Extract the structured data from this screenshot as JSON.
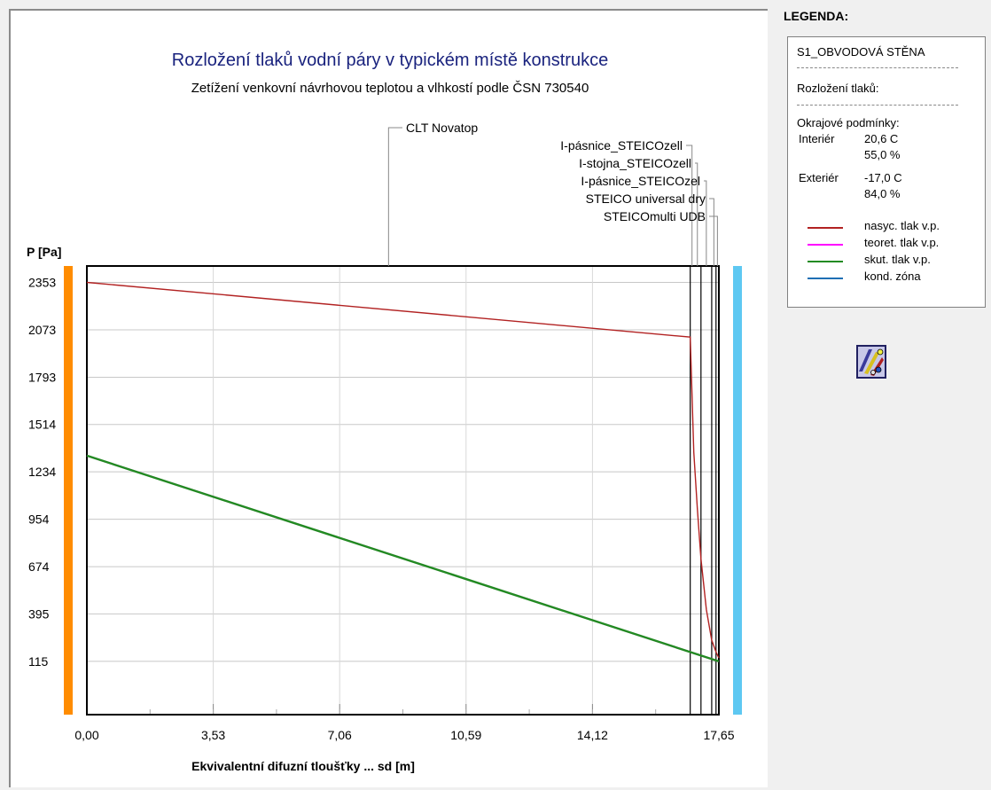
{
  "chart_data": {
    "type": "line",
    "title": "Rozložení tlaků vodní páry v typickém místě konstrukce",
    "subtitle": "Zetížení venkovní návrhovou teplotou a vlhkostí podle ČSN 730540",
    "ylabel": "P [Pa]",
    "xlabel": "Ekvivalentní difuzní tloušťky ... sd [m]",
    "xlim": [
      0,
      17.65
    ],
    "ylim": [
      -200,
      2450
    ],
    "yticks": [
      2353,
      2073,
      1793,
      1514,
      1234,
      954,
      674,
      395,
      115
    ],
    "ytick_labels": [
      "2353",
      "2073",
      "1793",
      "1514",
      "1234",
      "954",
      "674",
      "395",
      "115"
    ],
    "xticks": [
      0,
      3.53,
      7.06,
      10.59,
      14.12,
      17.65
    ],
    "xtick_labels": [
      "0,00",
      "3,53",
      "7,06",
      "10,59",
      "14,12",
      "17,65"
    ],
    "grid": true,
    "layer_boundaries": [
      16.85,
      17.15,
      17.45,
      17.57,
      17.65
    ],
    "layers": [
      {
        "name": "CLT Novatop",
        "x_start": 0,
        "x_end": 16.85
      },
      {
        "name": "I-pásnice_STEICOzell",
        "x_start": 16.85,
        "x_end": 16.95
      },
      {
        "name": "I-stojna_STEICOzell",
        "x_start": 16.95,
        "x_end": 17.15
      },
      {
        "name": "I-pásnice_STEICOzel",
        "x_start": 17.15,
        "x_end": 17.45
      },
      {
        "name": "STEICO universal dry",
        "x_start": 17.45,
        "x_end": 17.57
      },
      {
        "name": "STEICOmulti UDB",
        "x_start": 17.57,
        "x_end": 17.65
      }
    ],
    "series": [
      {
        "name": "nasyc. tlak v.p.",
        "color": "#b22222",
        "x": [
          0,
          16.85,
          16.9,
          16.95,
          17.05,
          17.15,
          17.3,
          17.45,
          17.57,
          17.65
        ],
        "y": [
          2353,
          2030,
          1690,
          1350,
          1010,
          720,
          420,
          240,
          170,
          135
        ]
      },
      {
        "name": "teoret. tlak v.p.",
        "color": "#ff00ff",
        "x": [
          0,
          17.65
        ],
        "y": [
          1330,
          115
        ]
      },
      {
        "name": "skut. tlak v.p.",
        "color": "#228b22",
        "x": [
          0,
          17.65
        ],
        "y": [
          1330,
          115
        ]
      },
      {
        "name": "kond. zóna",
        "color": "#1f6fb4",
        "x": [],
        "y": []
      }
    ],
    "interior_color": "#ff8c00",
    "exterior_color": "#5ec8f2"
  },
  "legend": {
    "heading": "LEGENDA:",
    "construction": "S1_OBVODOVÁ STĚNA",
    "section": "Rozložení tlaků:",
    "conditions_title": "Okrajové podmínky:",
    "interior_label": "Interiér",
    "interior_temp": "20,6 C",
    "interior_rh": "55,0 %",
    "exterior_label": "Exteriér",
    "exterior_temp": "-17,0 C",
    "exterior_rh": "84,0 %",
    "items": [
      {
        "label": "nasyc. tlak v.p.",
        "color": "#b22222"
      },
      {
        "label": "teoret. tlak v.p.",
        "color": "#ff00ff"
      },
      {
        "label": "skut. tlak v.p.",
        "color": "#228b22"
      },
      {
        "label": "kond. zóna",
        "color": "#1f6fb4"
      }
    ]
  },
  "icons": {
    "tool": "chart-tool-icon"
  }
}
